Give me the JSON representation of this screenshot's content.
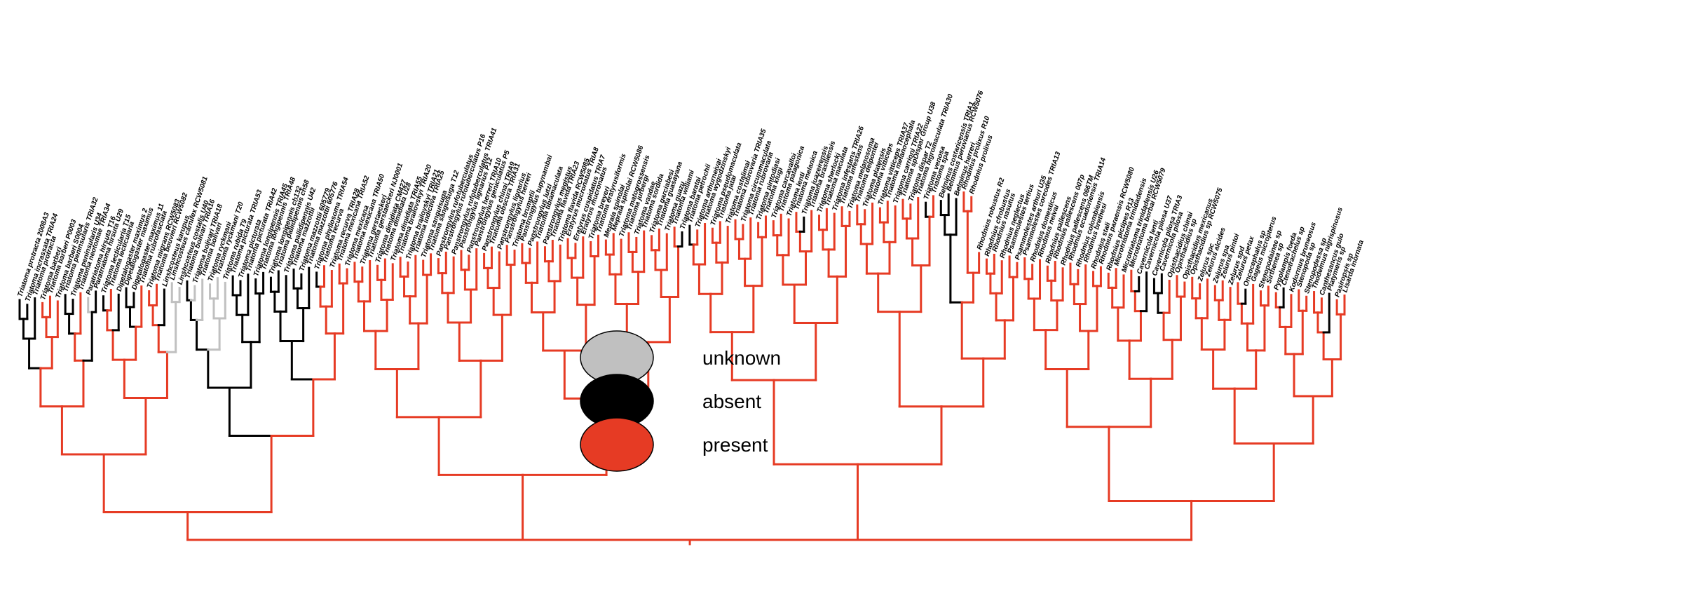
{
  "colors": {
    "unknown": "#c0c0c0",
    "absent": "#000000",
    "present": "#e63b24"
  },
  "legend": [
    {
      "state": "unknown",
      "label": "unknown"
    },
    {
      "state": "absent",
      "label": "absent"
    },
    {
      "state": "present",
      "label": "present"
    }
  ],
  "taxa": [
    {
      "name": "Triatoma protracta 2008A3",
      "state": "absent"
    },
    {
      "name": "Triatoma incrassata TRIA24",
      "state": "absent"
    },
    {
      "name": "Triatoma protracta",
      "state": "absent"
    },
    {
      "name": "Triatoma barberi",
      "state": "present"
    },
    {
      "name": "Triatoma barberi P0003",
      "state": "present"
    },
    {
      "name": "Triatoma barberi S0004",
      "state": "present"
    },
    {
      "name": "Triatoma peninsularis TRIA32",
      "state": "absent"
    },
    {
      "name": "Triatoma peninsularis U34",
      "state": "absent"
    },
    {
      "name": "Triatoma neotomae TRIA34",
      "state": "present"
    },
    {
      "name": "Paratriatoma hirsuta T16",
      "state": "unknown"
    },
    {
      "name": "Paratriatoma hirsuta U29",
      "state": "absent"
    },
    {
      "name": "Triatoma lecticularia T15",
      "state": "absent"
    },
    {
      "name": "Triatoma lecticularia",
      "state": "present"
    },
    {
      "name": "Dipetalogaster maximus 2",
      "state": "absent"
    },
    {
      "name": "Dipetalogaster maximus",
      "state": "absent"
    },
    {
      "name": "Dipetalogaster maximus 11",
      "state": "absent"
    },
    {
      "name": "Triatoma rubrofasciata",
      "state": "present"
    },
    {
      "name": "Triatoma migrans RCW5083",
      "state": "present"
    },
    {
      "name": "Triatoma bouvieri RCW5082",
      "state": "present"
    },
    {
      "name": "Linshcosteus karupus",
      "state": "absent"
    },
    {
      "name": "Linshcosteus carnifex RCW5081",
      "state": "unknown"
    },
    {
      "name": "Linshcosteus costalis U40",
      "state": "unknown"
    },
    {
      "name": "Triatoma bolivari TRIA16",
      "state": "absent"
    },
    {
      "name": "Triatoma bolivari TRIA18",
      "state": "unknown"
    },
    {
      "name": "Triatoma bolivari",
      "state": "unknown"
    },
    {
      "name": "Triatoma ryckmani",
      "state": "unknown"
    },
    {
      "name": "Triatoma ryckmani T20",
      "state": "unknown"
    },
    {
      "name": "Triatoma rubida T9",
      "state": "unknown"
    },
    {
      "name": "Triatoma picturata TRIA53",
      "state": "absent"
    },
    {
      "name": "Triatoma picturata",
      "state": "absent"
    },
    {
      "name": "Triatoma picturata TRIA42",
      "state": "absent"
    },
    {
      "name": "Triatoma longipennis TRIA45",
      "state": "absent"
    },
    {
      "name": "Triatoma longipennis TRIA48",
      "state": "absent"
    },
    {
      "name": "Triatoma longipennis ch132",
      "state": "absent"
    },
    {
      "name": "Triatoma pallidipennis ch58",
      "state": "absent"
    },
    {
      "name": "Triatoma pallidipennis U42",
      "state": "absent"
    },
    {
      "name": "Triatoma mazzottii",
      "state": "absent"
    },
    {
      "name": "Triatoma mazzottii 605779",
      "state": "absent"
    },
    {
      "name": "Triatoma mazzottii 605776",
      "state": "absent"
    },
    {
      "name": "Triatoma phyllosoma TRIA54",
      "state": "absent"
    },
    {
      "name": "Triatoma recurva",
      "state": "present"
    },
    {
      "name": "Triatoma recurva TRIA28",
      "state": "present"
    },
    {
      "name": "Triatoma mexicana TRIA52",
      "state": "present"
    },
    {
      "name": "Triatoma mexicana",
      "state": "present"
    },
    {
      "name": "Triatoma mexicana TRIA50",
      "state": "present"
    },
    {
      "name": "Triatoma gerstaeckeri",
      "state": "present"
    },
    {
      "name": "Triatoma gerstaeckeri NJ0001",
      "state": "present"
    },
    {
      "name": "Triatoma dimidiata CM427",
      "state": "present"
    },
    {
      "name": "Triatoma dimidiata U28",
      "state": "present"
    },
    {
      "name": "Triatoma dimidiata TRIA55",
      "state": "present"
    },
    {
      "name": "Triatoma brailovskyi TRIA20",
      "state": "present"
    },
    {
      "name": "Triatoma brailovskyi TRIA21",
      "state": "present"
    },
    {
      "name": "Triatoma indictiva TRIA25",
      "state": "present"
    },
    {
      "name": "Triatoma sanguisuga",
      "state": "present"
    },
    {
      "name": "Triatoma sanguisuga T12",
      "state": "present"
    },
    {
      "name": "Panstrongylus rufotuberculatus",
      "state": "present"
    },
    {
      "name": "Panstrongylus rufotuberculatus P16",
      "state": "present"
    },
    {
      "name": "Panstrongylus rufotuberculatus TRIA41",
      "state": "present"
    },
    {
      "name": "Panstrongylus lignarius P12",
      "state": "present"
    },
    {
      "name": "Panstrongylus herreri TRIA10",
      "state": "present"
    },
    {
      "name": "Panstrongylus geniculatus P5",
      "state": "present"
    },
    {
      "name": "Panstrongylus chinai TRIA9",
      "state": "present"
    },
    {
      "name": "Triatoma obscura TRIA31",
      "state": "present"
    },
    {
      "name": "Panstrongylus lignarius",
      "state": "present"
    },
    {
      "name": "Panstrongylus herreri",
      "state": "present"
    },
    {
      "name": "Triatoma brumptii",
      "state": "present"
    },
    {
      "name": "Panstrongylus tupynambai",
      "state": "present"
    },
    {
      "name": "Panstrongylus lutzi",
      "state": "present"
    },
    {
      "name": "Triatoma tibiamaculata",
      "state": "present"
    },
    {
      "name": "Panstrongylus megistus",
      "state": "present"
    },
    {
      "name": "Triatoma flavida TRIA23",
      "state": "present"
    },
    {
      "name": "Triatoma flavida RCW5085",
      "state": "present"
    },
    {
      "name": "Eratyrus mucronatus TRIA8",
      "state": "present"
    },
    {
      "name": "Eratyrus cuspidatus TRIA7",
      "state": "present"
    },
    {
      "name": "Eratyrus mucronatus",
      "state": "present"
    },
    {
      "name": "Triatoma breyeri",
      "state": "present"
    },
    {
      "name": "Triatoma eratyrusiformis",
      "state": "present"
    },
    {
      "name": "Mepraia spinolai",
      "state": "present"
    },
    {
      "name": "Mepraia spinolai RCW5086",
      "state": "present"
    },
    {
      "name": "Triatoma matogrossensis",
      "state": "present"
    },
    {
      "name": "Triatoma jurbergi",
      "state": "present"
    },
    {
      "name": "Triatoma vandae",
      "state": "present"
    },
    {
      "name": "Triatoma sordida",
      "state": "present"
    },
    {
      "name": "Triatoma garciabesi",
      "state": "present"
    },
    {
      "name": "Triatoma guasayana",
      "state": "present"
    },
    {
      "name": "Triatoma guazu",
      "state": "present"
    },
    {
      "name": "Triatoma williami",
      "state": "present"
    },
    {
      "name": "Triatoma baratai",
      "state": "absent"
    },
    {
      "name": "Triatoma petrochii",
      "state": "absent"
    },
    {
      "name": "Triatoma arthurneivai",
      "state": "present"
    },
    {
      "name": "Triatoma wygodzinskyi",
      "state": "present"
    },
    {
      "name": "Triatoma pseudomaculata",
      "state": "present"
    },
    {
      "name": "Triatoma jatai",
      "state": "present"
    },
    {
      "name": "Triatoma costalimai",
      "state": "present"
    },
    {
      "name": "Triatoma rubrovaria TRIA35",
      "state": "present"
    },
    {
      "name": "Triatoma circummaculata",
      "state": "present"
    },
    {
      "name": "Triatoma rubrovaria",
      "state": "present"
    },
    {
      "name": "Triatoma pintodiasi",
      "state": "present"
    },
    {
      "name": "Triatoma klugi",
      "state": "present"
    },
    {
      "name": "Triatoma carcavalloi",
      "state": "present"
    },
    {
      "name": "Triatoma patagonica",
      "state": "present"
    },
    {
      "name": "Triatoma lenti",
      "state": "present"
    },
    {
      "name": "Triatoma melanica",
      "state": "present"
    },
    {
      "name": "Triatoma juazeirensis",
      "state": "absent"
    },
    {
      "name": "Triatoma brasiliensis",
      "state": "present"
    },
    {
      "name": "Triatoma sherlocki",
      "state": "present"
    },
    {
      "name": "Triatoma maculata",
      "state": "present"
    },
    {
      "name": "Triatoma infestans TRIA26",
      "state": "present"
    },
    {
      "name": "Triatoma infestans",
      "state": "present"
    },
    {
      "name": "Triatoma melanosoma",
      "state": "present"
    },
    {
      "name": "Triatoma delpontei",
      "state": "present"
    },
    {
      "name": "Triatoma platensis",
      "state": "present"
    },
    {
      "name": "Triatoma vitticeps",
      "state": "present"
    },
    {
      "name": "Triatoma vitticeps TRIA37",
      "state": "present"
    },
    {
      "name": "Triatoma melanocephala",
      "state": "present"
    },
    {
      "name": "Triatoma carrioni TRIA22",
      "state": "present"
    },
    {
      "name": "Triatoma spDispar Group U38",
      "state": "present"
    },
    {
      "name": "Triatoma dispar T2",
      "state": "present"
    },
    {
      "name": "Triatoma nigromaculata TRIA30",
      "state": "present"
    },
    {
      "name": "Triatoma venosa",
      "state": "absent"
    },
    {
      "name": "Triatoma spa",
      "state": "present"
    },
    {
      "name": "Belminus costaricensis TRIA1",
      "state": "absent"
    },
    {
      "name": "Belminus peruvianus RCW5076",
      "state": "absent"
    },
    {
      "name": "Belminus herreri",
      "state": "absent"
    },
    {
      "name": "Rhodnius prolixus R10",
      "state": "present"
    },
    {
      "name": "Rhodnius prolixus",
      "state": "present"
    },
    {
      "name": "Rhodnius robustus R2",
      "state": "present"
    },
    {
      "name": "Rhodnius cfrobustus",
      "state": "present"
    },
    {
      "name": "Rhodnius nasutus",
      "state": "present"
    },
    {
      "name": "Rhodnius neglectus",
      "state": "present"
    },
    {
      "name": "Psammolestes tertius",
      "state": "present"
    },
    {
      "name": "Psammolestes arthuri U35",
      "state": "present"
    },
    {
      "name": "Psammolestes coreodes TRIA13",
      "state": "present"
    },
    {
      "name": "Rhodnius domesticus",
      "state": "present"
    },
    {
      "name": "Rhodnius neivai",
      "state": "present"
    },
    {
      "name": "Rhodnius pallescens",
      "state": "present"
    },
    {
      "name": "Rhodnius pallescens 007p",
      "state": "present"
    },
    {
      "name": "Rhodnius pallescens 066TM",
      "state": "present"
    },
    {
      "name": "Rhodnius ecuadoriensis TRIA14",
      "state": "present"
    },
    {
      "name": "Rhodnius colombiensis",
      "state": "present"
    },
    {
      "name": "Rhodnius brethesi",
      "state": "present"
    },
    {
      "name": "Rhodnius stali",
      "state": "present"
    },
    {
      "name": "Rhodnius paraensis RCW5080",
      "state": "present"
    },
    {
      "name": "Rhodnius pictipes R13",
      "state": "present"
    },
    {
      "name": "Microtriatoma trinidadensis",
      "state": "present"
    },
    {
      "name": "Microtriatoma trinidadensis U26",
      "state": "present"
    },
    {
      "name": "Microtriatoma borbai RCW5079",
      "state": "present"
    },
    {
      "name": "Cavernicola lenti",
      "state": "absent"
    },
    {
      "name": "Cavernicola pilosa U37",
      "state": "absent"
    },
    {
      "name": "Cavernicola pilosa TRIA3",
      "state": "absent"
    },
    {
      "name": "Cavernicola pilosa",
      "state": "absent"
    },
    {
      "name": "Opisthacidius chinai",
      "state": "present"
    },
    {
      "name": "Opisthacidius sp",
      "state": "present"
    },
    {
      "name": "Opisthacidius mexicanus",
      "state": "present"
    },
    {
      "name": "Opisthacidius sp RCW5075",
      "state": "present"
    },
    {
      "name": "Zelurus spc",
      "state": "present"
    },
    {
      "name": "Zelurus alcides",
      "state": "present"
    },
    {
      "name": "Zelurus spa",
      "state": "present"
    },
    {
      "name": "Zelurus pintoi",
      "state": "present"
    },
    {
      "name": "Zelurus spd",
      "state": "present"
    },
    {
      "name": "Zelurus petax",
      "state": "present"
    },
    {
      "name": "Oncocephalus sp",
      "state": "absent"
    },
    {
      "name": "Gageus micropterus",
      "state": "present"
    },
    {
      "name": "Stenopodainae sp",
      "state": "present"
    },
    {
      "name": "Sirthenea sp",
      "state": "present"
    },
    {
      "name": "Pygolampis foeda",
      "state": "present"
    },
    {
      "name": "Ctenotrachelus sp",
      "state": "absent"
    },
    {
      "name": "Kodormus bruneosus",
      "state": "present"
    },
    {
      "name": "Stenopoda sp",
      "state": "present"
    },
    {
      "name": "Stenopodessa sp",
      "state": "present"
    },
    {
      "name": "Thodelmus nigrispinosus",
      "state": "present"
    },
    {
      "name": "Canthesancus gulo",
      "state": "present"
    },
    {
      "name": "Platymeris sp",
      "state": "absent"
    },
    {
      "name": "Pasiropsis sp",
      "state": "present"
    },
    {
      "name": "Lisarda inornata",
      "state": "present"
    }
  ]
}
